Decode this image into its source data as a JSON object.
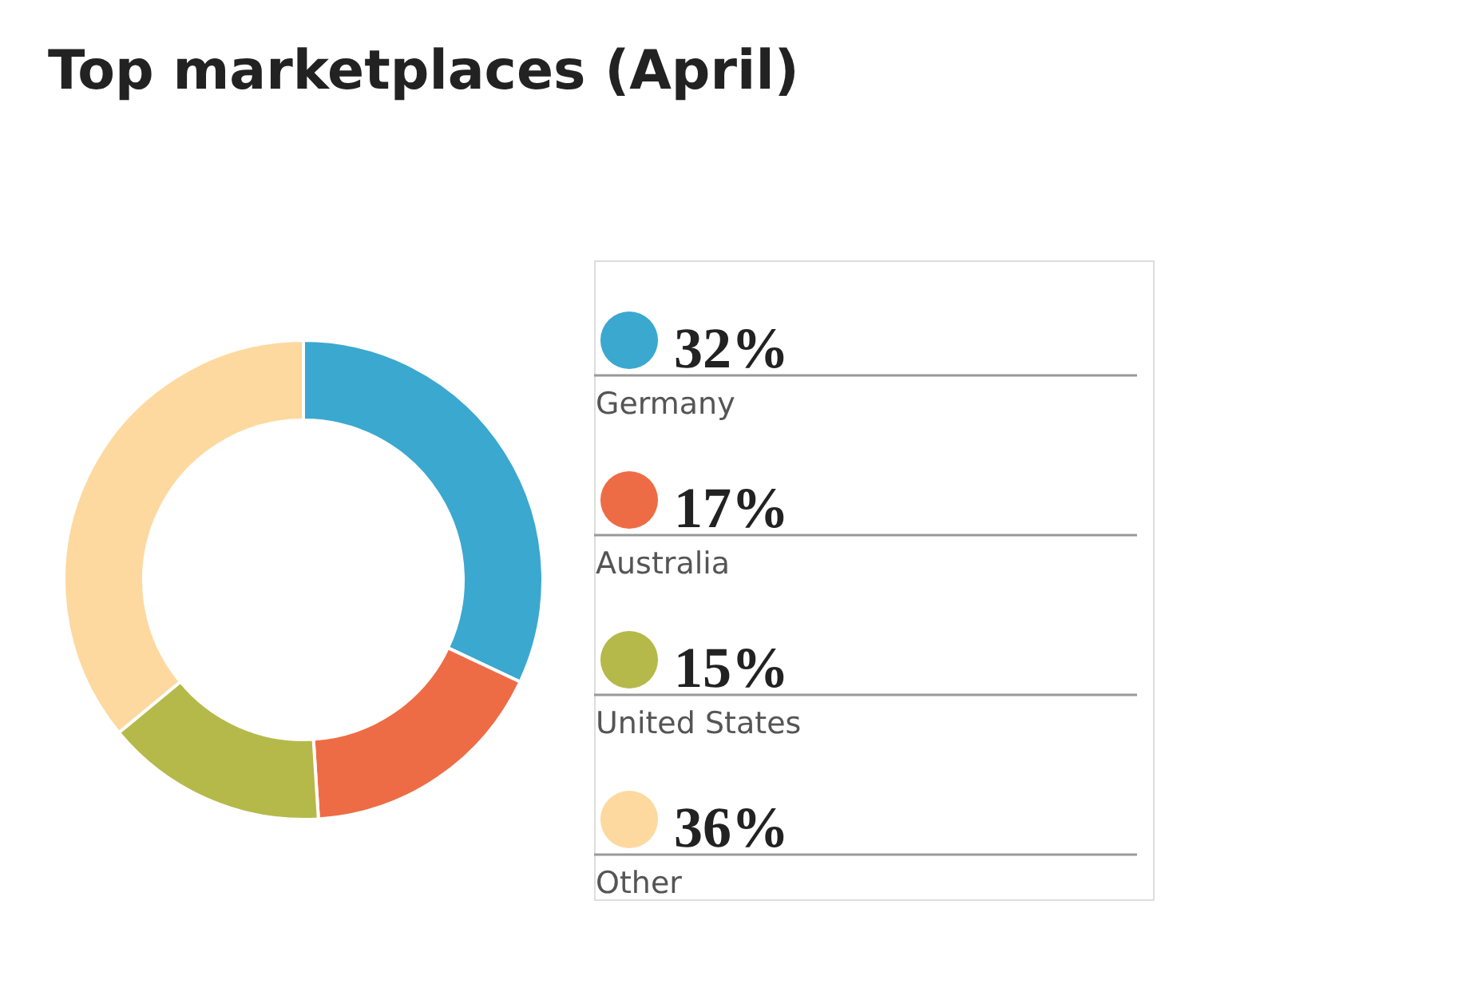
{
  "chart_data": {
    "type": "donut",
    "title": "Top marketplaces (April)",
    "categories": [
      "Germany",
      "Australia",
      "United States",
      "Other"
    ],
    "values": [
      32,
      17,
      15,
      36
    ],
    "value_labels": [
      "32%",
      "17%",
      "15%",
      "36%"
    ],
    "colors": [
      "#3ba8d0",
      "#ee6c45",
      "#b5b94a",
      "#fdd9a0"
    ],
    "legend": "right"
  }
}
